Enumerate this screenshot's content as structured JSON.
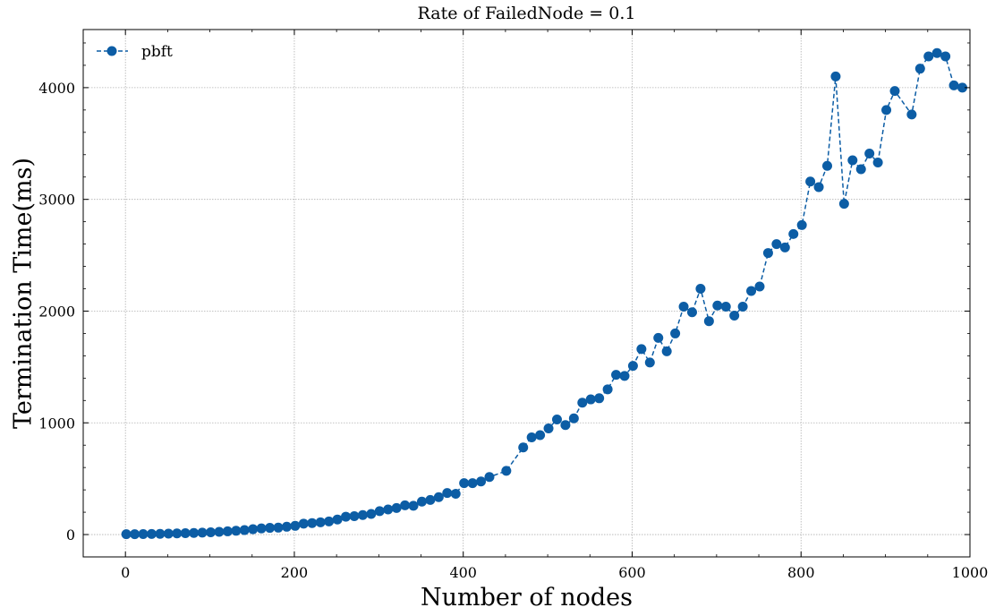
{
  "chart_data": {
    "type": "line",
    "title": "Rate of FailedNode = 0.1",
    "xlabel": "Number of nodes",
    "ylabel": "Termination Time(ms)",
    "xlim": [
      -50,
      1000
    ],
    "ylim": [
      -200,
      4520
    ],
    "xticks": [
      0,
      200,
      400,
      600,
      800,
      1000
    ],
    "yticks": [
      0,
      1000,
      2000,
      3000,
      4000
    ],
    "grid": true,
    "legend": {
      "position": "top-left"
    },
    "series": [
      {
        "name": "pbft",
        "color": "#0c5da5",
        "marker": "circle",
        "linestyle": "dashed",
        "x": [
          1,
          11,
          21,
          31,
          41,
          51,
          61,
          71,
          81,
          91,
          101,
          111,
          121,
          131,
          141,
          151,
          161,
          171,
          181,
          191,
          201,
          211,
          221,
          231,
          241,
          251,
          261,
          271,
          281,
          291,
          301,
          311,
          321,
          331,
          341,
          351,
          361,
          371,
          381,
          391,
          401,
          411,
          421,
          431,
          451,
          471,
          481,
          491,
          501,
          511,
          521,
          531,
          541,
          551,
          561,
          571,
          581,
          591,
          601,
          611,
          621,
          631,
          641,
          651,
          661,
          671,
          681,
          691,
          701,
          711,
          721,
          731,
          741,
          751,
          761,
          771,
          781,
          791,
          801,
          811,
          821,
          831,
          841,
          851,
          861,
          871,
          881,
          891,
          901,
          911,
          931,
          941,
          951,
          961,
          971,
          981,
          991
        ],
        "y": [
          3,
          3,
          4,
          5,
          6,
          8,
          10,
          12,
          14,
          17,
          20,
          24,
          29,
          34,
          40,
          48,
          55,
          60,
          62,
          70,
          78,
          98,
          103,
          110,
          118,
          135,
          160,
          165,
          175,
          185,
          210,
          225,
          238,
          262,
          258,
          295,
          310,
          335,
          372,
          365,
          460,
          460,
          475,
          515,
          570,
          780,
          870,
          890,
          950,
          1030,
          980,
          1040,
          1180,
          1210,
          1220,
          1300,
          1430,
          1420,
          1510,
          1660,
          1540,
          1760,
          1640,
          1800,
          2040,
          1990,
          2200,
          1910,
          2050,
          2040,
          1960,
          2040,
          2180,
          2220,
          2520,
          2600,
          2570,
          2690,
          2770,
          3160,
          3110,
          3300,
          4100,
          2960,
          3350,
          3270,
          3410,
          3330,
          3800,
          3970,
          3760,
          4170,
          4280,
          4310,
          4280,
          4020,
          4000
        ]
      }
    ]
  }
}
